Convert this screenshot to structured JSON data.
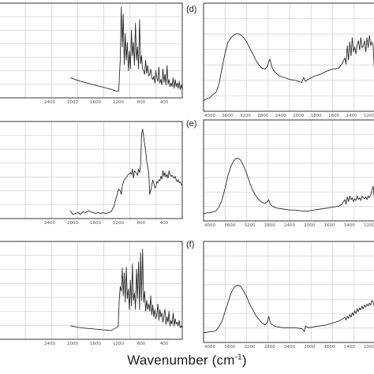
{
  "figure": {
    "axis_label_text": "Wavenumber (cm",
    "axis_label_superscript": "-1",
    "axis_label_close": ")"
  },
  "colors": {
    "frame": "#333333",
    "grid": "#cfcfcf",
    "line": "#2a2a2a",
    "background": "#ffffff"
  },
  "chart_data": [
    {
      "type": "line",
      "panel": "a",
      "label": "",
      "xlim": [
        4000,
        400
      ],
      "ylim": [
        0,
        100
      ],
      "xticks": [
        "2400",
        "2000",
        "1600",
        "1200",
        "800",
        "400"
      ],
      "x": [
        2600,
        2400,
        2200,
        2000,
        1800,
        1700,
        1650,
        1620,
        1600,
        1580,
        1560,
        1540,
        1520,
        1500,
        1480,
        1460,
        1440,
        1420,
        1400,
        1380,
        1360,
        1340,
        1320,
        1300,
        1280,
        1260,
        1240,
        1220,
        1200,
        1180,
        1160,
        1140,
        1120,
        1100,
        1080,
        1060,
        1040,
        1020,
        1000,
        980,
        960,
        940,
        920,
        900,
        880,
        860,
        840,
        820,
        800,
        780,
        760,
        740,
        720,
        700,
        680,
        660,
        640,
        620,
        600,
        580,
        560,
        540,
        520,
        500,
        480,
        460,
        440,
        420,
        400
      ],
      "y": [
        20,
        16,
        13,
        10,
        7,
        5,
        5,
        40,
        100,
        55,
        92,
        35,
        70,
        40,
        60,
        28,
        50,
        30,
        74,
        45,
        60,
        34,
        82,
        40,
        55,
        30,
        86,
        36,
        45,
        30,
        28,
        24,
        40,
        25,
        34,
        22,
        24,
        30,
        20,
        18,
        22,
        14,
        28,
        20,
        16,
        32,
        14,
        18,
        12,
        30,
        15,
        24,
        12,
        34,
        13,
        18,
        10,
        14,
        10,
        20,
        8,
        18,
        10,
        14,
        8,
        16,
        7,
        12,
        6
      ]
    },
    {
      "type": "line",
      "panel": "b",
      "label": "",
      "xlim": [
        4000,
        400
      ],
      "ylim": [
        0,
        100
      ],
      "xticks": [
        "2400",
        "2000",
        "1600",
        "1200",
        "800",
        "400"
      ],
      "x": [
        2600,
        2550,
        2450,
        2400,
        2350,
        2300,
        2250,
        2200,
        2150,
        2100,
        2050,
        2000,
        1950,
        1900,
        1850,
        1800,
        1750,
        1700,
        1650,
        1620,
        1600,
        1580,
        1540,
        1500,
        1460,
        1420,
        1400,
        1380,
        1360,
        1340,
        1300,
        1280,
        1260,
        1240,
        1220,
        1200,
        1180,
        1160,
        1140,
        1120,
        1100,
        1080,
        1060,
        1040,
        1020,
        1000,
        980,
        960,
        940,
        920,
        900,
        880,
        860,
        840,
        820,
        800,
        780,
        760,
        740,
        720,
        700,
        680,
        660,
        640,
        620,
        600,
        580,
        560,
        540,
        520,
        500,
        480,
        460,
        440,
        420,
        400
      ],
      "y": [
        6,
        2,
        4,
        2,
        5,
        4,
        6,
        5,
        4,
        3,
        4,
        3,
        4,
        3,
        4,
        5,
        10,
        20,
        30,
        28,
        24,
        34,
        40,
        43,
        46,
        48,
        46,
        52,
        42,
        50,
        47,
        45,
        52,
        48,
        56,
        90,
        96,
        88,
        80,
        72,
        60,
        55,
        48,
        24,
        28,
        34,
        40,
        36,
        31,
        32,
        38,
        37,
        40,
        39,
        44,
        41,
        50,
        44,
        48,
        43,
        46,
        42,
        50,
        46,
        44,
        45,
        43,
        42,
        44,
        40,
        38,
        40,
        37,
        38,
        35,
        34
      ]
    },
    {
      "type": "line",
      "panel": "c",
      "label": "",
      "xlim": [
        4000,
        400
      ],
      "ylim": [
        0,
        100
      ],
      "xticks": [
        "2400",
        "2000",
        "1600",
        "1200",
        "800",
        "400"
      ],
      "x": [
        2600,
        2400,
        2200,
        2000,
        1800,
        1700,
        1660,
        1640,
        1620,
        1600,
        1580,
        1560,
        1540,
        1520,
        1500,
        1480,
        1460,
        1440,
        1420,
        1400,
        1380,
        1360,
        1340,
        1320,
        1300,
        1280,
        1260,
        1240,
        1220,
        1200,
        1180,
        1160,
        1140,
        1120,
        1100,
        1080,
        1060,
        1040,
        1020,
        1000,
        980,
        960,
        940,
        920,
        900,
        880,
        860,
        840,
        820,
        800,
        780,
        760,
        740,
        720,
        700,
        680,
        660,
        640,
        620,
        600,
        580,
        560,
        540,
        520,
        500,
        480,
        460,
        440,
        420,
        400
      ],
      "y": [
        12,
        10,
        9,
        8,
        7,
        10,
        12,
        40,
        55,
        50,
        75,
        45,
        70,
        38,
        76,
        42,
        52,
        30,
        62,
        34,
        80,
        40,
        48,
        30,
        74,
        42,
        82,
        30,
        92,
        40,
        96,
        38,
        50,
        28,
        40,
        30,
        36,
        28,
        45,
        24,
        35,
        22,
        30,
        20,
        24,
        36,
        18,
        30,
        22,
        26,
        16,
        24,
        30,
        14,
        22,
        16,
        28,
        12,
        18,
        14,
        26,
        12,
        20,
        14,
        16,
        12,
        18,
        10,
        12,
        10
      ]
    },
    {
      "type": "line",
      "panel": "d",
      "label": "(d)",
      "xlim": [
        4000,
        1200
      ],
      "ylim": [
        0,
        100
      ],
      "xticks": [
        "4000",
        "3600",
        "3200",
        "2800",
        "2400",
        "2000",
        "1800",
        "1600",
        "1400",
        "1200"
      ],
      "x": [
        4000,
        3950,
        3900,
        3850,
        3800,
        3750,
        3700,
        3650,
        3600,
        3550,
        3500,
        3450,
        3400,
        3350,
        3300,
        3250,
        3200,
        3150,
        3100,
        3050,
        3000,
        2960,
        2940,
        2920,
        2900,
        2880,
        2850,
        2800,
        2750,
        2700,
        2600,
        2500,
        2400,
        2370,
        2340,
        2300,
        2200,
        2100,
        2000,
        1900,
        1800,
        1750,
        1700,
        1680,
        1660,
        1640,
        1620,
        1600,
        1580,
        1560,
        1540,
        1520,
        1500,
        1480,
        1460,
        1440,
        1420,
        1400,
        1380,
        1360,
        1340,
        1320,
        1300,
        1280,
        1260,
        1240,
        1220,
        1200
      ],
      "y": [
        8,
        10,
        11,
        14,
        16,
        24,
        40,
        55,
        66,
        70,
        73,
        74,
        73,
        70,
        66,
        60,
        54,
        48,
        43,
        40,
        39,
        42,
        46,
        49,
        44,
        40,
        37,
        34,
        32,
        31,
        29,
        28,
        26,
        31,
        27,
        29,
        32,
        34,
        37,
        39,
        40,
        44,
        50,
        44,
        62,
        48,
        66,
        52,
        70,
        56,
        61,
        54,
        63,
        67,
        58,
        70,
        60,
        62,
        67,
        56,
        70,
        60,
        72,
        62,
        66,
        62,
        40,
        75
      ]
    },
    {
      "type": "line",
      "panel": "e",
      "label": "(e)",
      "xlim": [
        4000,
        1200
      ],
      "ylim": [
        0,
        100
      ],
      "xticks": [
        "4000",
        "3600",
        "3200",
        "2800",
        "2400",
        "2000",
        "1600",
        "1400",
        "1200"
      ],
      "x": [
        4000,
        3950,
        3900,
        3850,
        3800,
        3750,
        3700,
        3650,
        3600,
        3550,
        3500,
        3450,
        3400,
        3350,
        3300,
        3250,
        3200,
        3150,
        3100,
        3050,
        3000,
        2960,
        2940,
        2920,
        2900,
        2850,
        2800,
        2700,
        2600,
        2500,
        2400,
        2300,
        2200,
        2100,
        2000,
        1900,
        1800,
        1750,
        1700,
        1680,
        1660,
        1640,
        1620,
        1600,
        1580,
        1560,
        1540,
        1520,
        1500,
        1480,
        1460,
        1440,
        1420,
        1400,
        1380,
        1360,
        1340,
        1320,
        1300,
        1280,
        1260,
        1240,
        1220,
        1200
      ],
      "y": [
        5,
        6,
        6,
        7,
        8,
        12,
        20,
        32,
        46,
        56,
        62,
        64,
        62,
        56,
        48,
        38,
        30,
        24,
        20,
        17,
        16,
        18,
        20,
        16,
        14,
        12,
        11,
        10,
        9,
        9,
        8,
        8,
        9,
        10,
        11,
        12,
        13,
        15,
        20,
        15,
        23,
        18,
        24,
        20,
        22,
        18,
        21,
        19,
        24,
        20,
        22,
        19,
        24,
        22,
        21,
        23,
        20,
        24,
        22,
        25,
        30,
        34,
        22,
        45
      ]
    },
    {
      "type": "line",
      "panel": "f",
      "label": "(f)",
      "xlim": [
        4000,
        1200
      ],
      "ylim": [
        0,
        100
      ],
      "xticks": [
        "4000",
        "3600",
        "3200",
        "2800",
        "2400",
        "2000",
        "1600",
        "1400",
        "1200"
      ],
      "x": [
        4000,
        3950,
        3900,
        3850,
        3800,
        3750,
        3700,
        3650,
        3600,
        3550,
        3500,
        3450,
        3400,
        3350,
        3300,
        3250,
        3200,
        3150,
        3100,
        3050,
        3000,
        2960,
        2940,
        2920,
        2900,
        2850,
        2800,
        2700,
        2600,
        2500,
        2400,
        2360,
        2340,
        2300,
        2200,
        2100,
        2000,
        1900,
        1800,
        1750,
        1700,
        1680,
        1660,
        1640,
        1620,
        1600,
        1580,
        1560,
        1540,
        1520,
        1500,
        1480,
        1460,
        1440,
        1420,
        1400,
        1380,
        1360,
        1340,
        1320,
        1300,
        1280,
        1260,
        1240,
        1220,
        1200
      ],
      "y": [
        8,
        8,
        9,
        9,
        10,
        14,
        20,
        30,
        40,
        50,
        56,
        58,
        57,
        52,
        46,
        38,
        32,
        26,
        22,
        18,
        16,
        19,
        25,
        20,
        17,
        15,
        14,
        13,
        13,
        13,
        12,
        9,
        15,
        13,
        14,
        15,
        16,
        18,
        20,
        22,
        24,
        21,
        25,
        23,
        27,
        24,
        29,
        26,
        31,
        28,
        33,
        30,
        34,
        32,
        36,
        33,
        37,
        35,
        38,
        36,
        39,
        37,
        42,
        40,
        36,
        46
      ]
    }
  ]
}
